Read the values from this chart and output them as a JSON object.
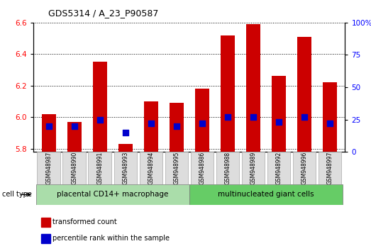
{
  "title": "GDS5314 / A_23_P90587",
  "samples": [
    "GSM948987",
    "GSM948990",
    "GSM948991",
    "GSM948993",
    "GSM948994",
    "GSM948995",
    "GSM948986",
    "GSM948988",
    "GSM948989",
    "GSM948992",
    "GSM948996",
    "GSM948997"
  ],
  "transformed_count": [
    6.02,
    5.97,
    6.35,
    5.83,
    6.1,
    6.09,
    6.18,
    6.52,
    6.59,
    6.26,
    6.51,
    6.22
  ],
  "percentile_rank": [
    20,
    20,
    25,
    15,
    22,
    20,
    22,
    27,
    27,
    23,
    27,
    22
  ],
  "groups": [
    {
      "label": "placental CD14+ macrophage",
      "start": 0,
      "end": 6,
      "color": "#aaddaa"
    },
    {
      "label": "multinucleated giant cells",
      "start": 6,
      "end": 12,
      "color": "#66cc66"
    }
  ],
  "ylim_left": [
    5.78,
    6.6
  ],
  "ylim_right": [
    0,
    100
  ],
  "yticks_left": [
    5.8,
    6.0,
    6.2,
    6.4,
    6.6
  ],
  "yticks_right": [
    0,
    25,
    50,
    75,
    100
  ],
  "bar_color": "#cc0000",
  "dot_color": "#0000cc",
  "bar_width": 0.55,
  "dot_size": 30,
  "cell_type_label": "cell type",
  "legend_items": [
    {
      "label": "transformed count",
      "color": "#cc0000"
    },
    {
      "label": "percentile rank within the sample",
      "color": "#0000cc"
    }
  ],
  "background_color": "#ffffff",
  "plot_bg_color": "#ffffff",
  "sample_box_color": "#dddddd"
}
